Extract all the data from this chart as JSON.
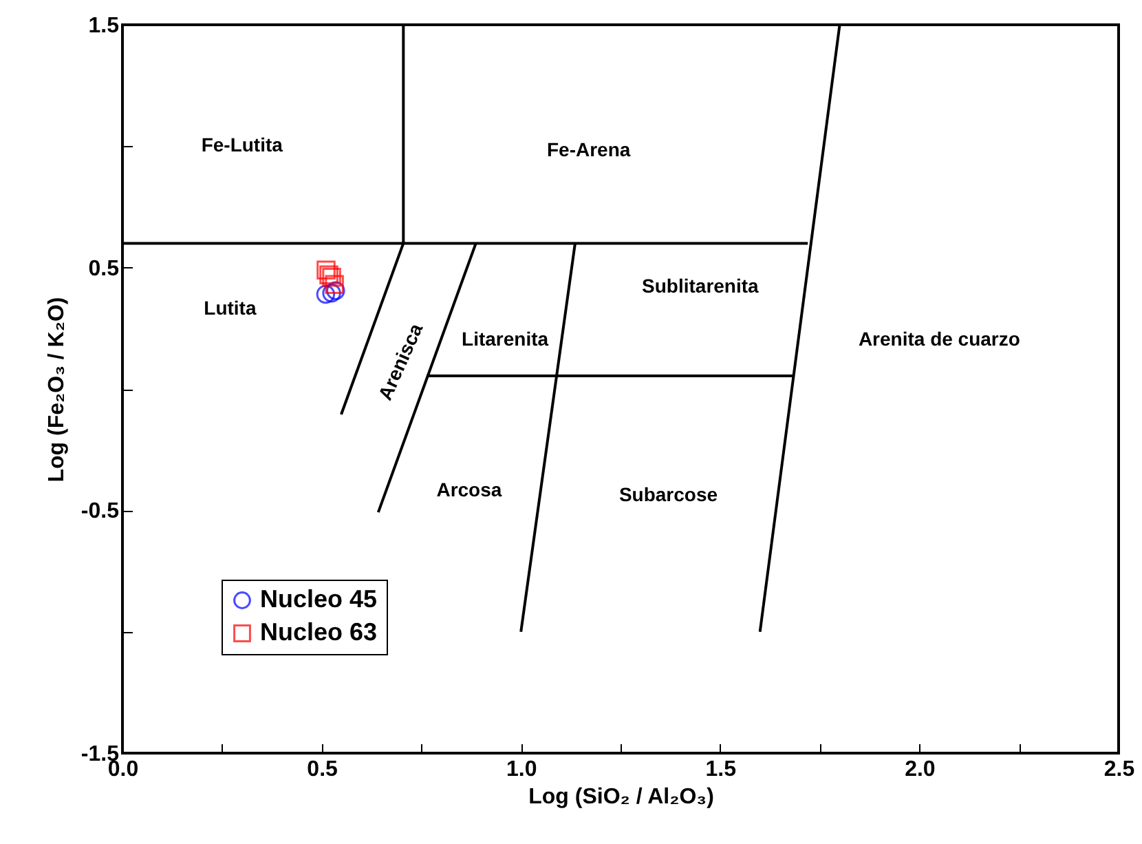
{
  "chart_data": {
    "type": "scatter",
    "xlabel": "Log (SiO₂ / Al₂O₃)",
    "ylabel": "Log (Fe₂O₃ / K₂O)",
    "xlim": [
      0,
      2.5
    ],
    "ylim": [
      -1.5,
      1.5
    ],
    "xticks": [
      {
        "value": 0,
        "label": "0.0"
      },
      {
        "value": 0.25,
        "label": null
      },
      {
        "value": 0.5,
        "label": "0.5"
      },
      {
        "value": 0.75,
        "label": null
      },
      {
        "value": 1,
        "label": "1.0"
      },
      {
        "value": 1.25,
        "label": null
      },
      {
        "value": 1.5,
        "label": "1.5"
      },
      {
        "value": 1.75,
        "label": null
      },
      {
        "value": 2,
        "label": "2.0"
      },
      {
        "value": 2.25,
        "label": null
      },
      {
        "value": 2.5,
        "label": "2.5"
      }
    ],
    "yticks": [
      -1.5,
      {
        "value": -1,
        "label": null
      },
      -0.5,
      {
        "value": 0,
        "label": null
      },
      0.5,
      {
        "value": 1,
        "label": null
      },
      1.5
    ],
    "grid": false,
    "legend": "bottom left",
    "series": [
      {
        "type": "line",
        "color": "#000000",
        "x": [
          0,
          1.72
        ],
        "values": [
          0.6,
          0.6
        ]
      },
      {
        "type": "line",
        "color": "#000000",
        "x": [
          0.705,
          0.705,
          0.549
        ],
        "values": [
          1.5,
          0.6,
          -0.105
        ]
      },
      {
        "type": "line",
        "color": "#000000",
        "x": [
          1.6,
          1.8
        ],
        "values": [
          -1,
          1.5
        ]
      },
      {
        "type": "line",
        "color": "#000000",
        "x": [
          1,
          1.136
        ],
        "values": [
          -1,
          0.6
        ]
      },
      {
        "type": "line",
        "color": "#000000",
        "x": [
          0.642,
          0.887
        ],
        "values": [
          -0.508,
          0.6
        ]
      },
      {
        "type": "line",
        "color": "#000000",
        "x": [
          0.763,
          1.685
        ],
        "values": [
          0.054,
          0.054
        ]
      },
      {
        "name": "Nucleo 45",
        "marker": "circle",
        "color": "#0000ff",
        "x": [
          0.51,
          0.525,
          0.535
        ],
        "values": [
          0.39,
          0.395,
          0.405
        ]
      },
      {
        "name": "Nucleo 63",
        "marker": "square",
        "color": "#ff0000",
        "x": [
          0.511,
          0.518,
          0.525,
          0.532
        ],
        "values": [
          0.49,
          0.47,
          0.46,
          0.43
        ]
      }
    ],
    "annotations": [
      "Fe-Lutita",
      "Fe-Arena",
      "Lutita",
      "Arenisca",
      "Litarenita",
      "Sublitarenita",
      "Arenita de cuarzo",
      "Arcosa",
      "Subarcose"
    ]
  }
}
